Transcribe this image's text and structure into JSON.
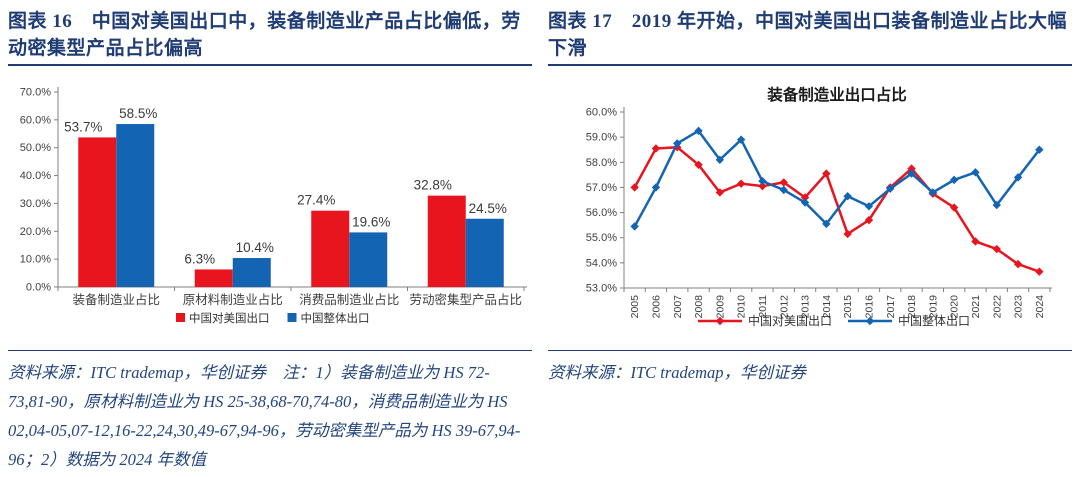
{
  "figure16": {
    "title": "图表 16　中国对美国出口中，装备制造业产品占比偏低，劳动密集型产品占比偏高",
    "source_note": "资料来源：ITC trademap，华创证券　注：1）装备制造业为 HS 72-73,81-90，原材料制造业为 HS 25-38,68-70,74-80，消费品制造业为 HS 02,04-05,07-12,16-22,24,30,49-67,94-96，劳动密集型产品为 HS 39-67,94-96；2）数据为 2024 年数值"
  },
  "figure17": {
    "title": "图表 17　2019 年开始，中国对美国出口装备制造业占比大幅下滑",
    "source_note": "资料来源：ITC trademap，华创证券"
  },
  "colors": {
    "us_export_red": "#E8141E",
    "overall_export_blue": "#1464B4",
    "title_navy": "#1F3C74",
    "axis_gray": "#808080",
    "label_dark": "#3A3A3A"
  },
  "chart_data": [
    {
      "type": "bar",
      "title": "",
      "categories": [
        "装备制造业占比",
        "原材料制造业占比",
        "消费品制造业占比",
        "劳动密集型产品占比"
      ],
      "series": [
        {
          "name": "中国对美国出口",
          "color": "#E8141E",
          "values": [
            53.7,
            6.3,
            27.4,
            32.8
          ]
        },
        {
          "name": "中国整体出口",
          "color": "#1464B4",
          "values": [
            58.5,
            10.4,
            19.6,
            24.5
          ]
        }
      ],
      "ylim": [
        0,
        70
      ],
      "ytick_step": 10,
      "ytick_format": "0.0%",
      "data_labels": true,
      "grid": false,
      "legend_position": "bottom"
    },
    {
      "type": "line",
      "title": "装备制造业出口占比",
      "x": [
        "2005",
        "2006",
        "2007",
        "2008",
        "2009",
        "2010",
        "2011",
        "2012",
        "2013",
        "2014",
        "2015",
        "2016",
        "2017",
        "2018",
        "2019",
        "2020",
        "2021",
        "2022",
        "2023",
        "2024"
      ],
      "series": [
        {
          "name": "中国对美国出口",
          "color": "#E8141E",
          "marker": "diamond",
          "values": [
            57.0,
            58.55,
            58.6,
            57.9,
            56.8,
            57.15,
            57.05,
            57.2,
            56.6,
            57.55,
            55.15,
            55.7,
            57.0,
            57.75,
            56.75,
            56.2,
            54.85,
            54.55,
            53.95,
            53.65
          ]
        },
        {
          "name": "中国整体出口",
          "color": "#1464B4",
          "marker": "diamond",
          "values": [
            55.45,
            57.0,
            58.75,
            59.25,
            58.1,
            58.9,
            57.25,
            56.9,
            56.4,
            55.55,
            56.65,
            56.25,
            56.95,
            57.55,
            56.8,
            57.3,
            57.6,
            56.3,
            57.4,
            58.5
          ]
        }
      ],
      "ylim": [
        53,
        60
      ],
      "ytick_step": 1,
      "ytick_format": "0.0%",
      "grid": false,
      "legend_position": "bottom"
    }
  ]
}
